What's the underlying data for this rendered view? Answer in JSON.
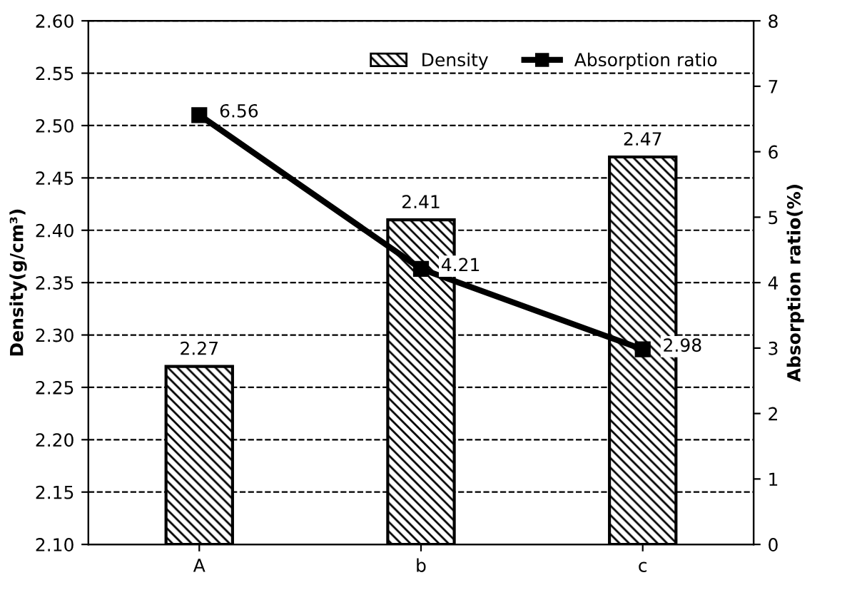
{
  "chart_data": {
    "type": "bar",
    "categories": [
      "A",
      "b",
      "c"
    ],
    "ylabel": "Density(g/cm³)",
    "y2label": "Absorption ratio(%)",
    "ylim": [
      2.1,
      2.6
    ],
    "yticks": [
      {
        "value": 2.1,
        "label": "2.10"
      },
      {
        "value": 2.15,
        "label": "2.15"
      },
      {
        "value": 2.2,
        "label": "2.20"
      },
      {
        "value": 2.25,
        "label": "2.25"
      },
      {
        "value": 2.3,
        "label": "2.30"
      },
      {
        "value": 2.35,
        "label": "2.35"
      },
      {
        "value": 2.4,
        "label": "2.40"
      },
      {
        "value": 2.45,
        "label": "2.45"
      },
      {
        "value": 2.5,
        "label": "2.50"
      },
      {
        "value": 2.55,
        "label": "2.55"
      },
      {
        "value": 2.6,
        "label": "2.60"
      }
    ],
    "y2lim": [
      0,
      8
    ],
    "y2ticks": [
      0,
      1,
      2,
      3,
      4,
      5,
      6,
      7,
      8
    ],
    "grid": "y",
    "legend": "top right",
    "data_labels": true,
    "series": [
      {
        "name": "Density",
        "color": "#000000",
        "values": [
          2.27,
          2.41,
          2.47
        ]
      },
      {
        "name": "Absorption ratio",
        "type": "line",
        "axis": "y2",
        "color": "#000000",
        "marker": "square",
        "line_style": "solid",
        "values": [
          6.56,
          4.21,
          2.98
        ]
      }
    ]
  }
}
